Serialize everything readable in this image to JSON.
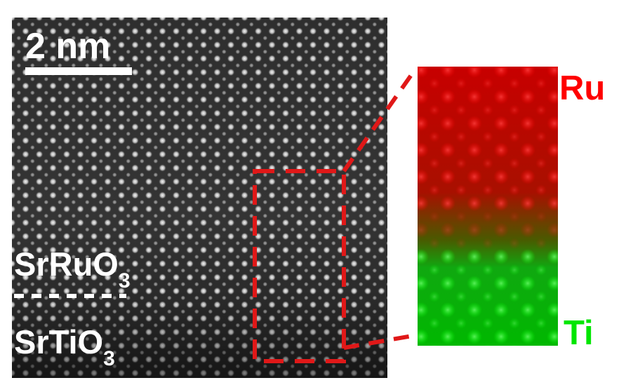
{
  "haadf_image": {
    "scale_bar_label": "2 nm",
    "layer_top": {
      "base": "SrRuO",
      "subscript": "3"
    },
    "layer_bottom": {
      "base": "SrTiO",
      "subscript": "3"
    }
  },
  "eels_map": {
    "top_element_label": "Ru",
    "bottom_element_label": "Ti",
    "top_color": "#ff0000",
    "bottom_color": "#00e600"
  },
  "colors": {
    "roi_box": "#e01818",
    "annotation_text": "#ffffff",
    "atom_bright": "#f2f2f2",
    "image_background": "#3a3a3a"
  }
}
